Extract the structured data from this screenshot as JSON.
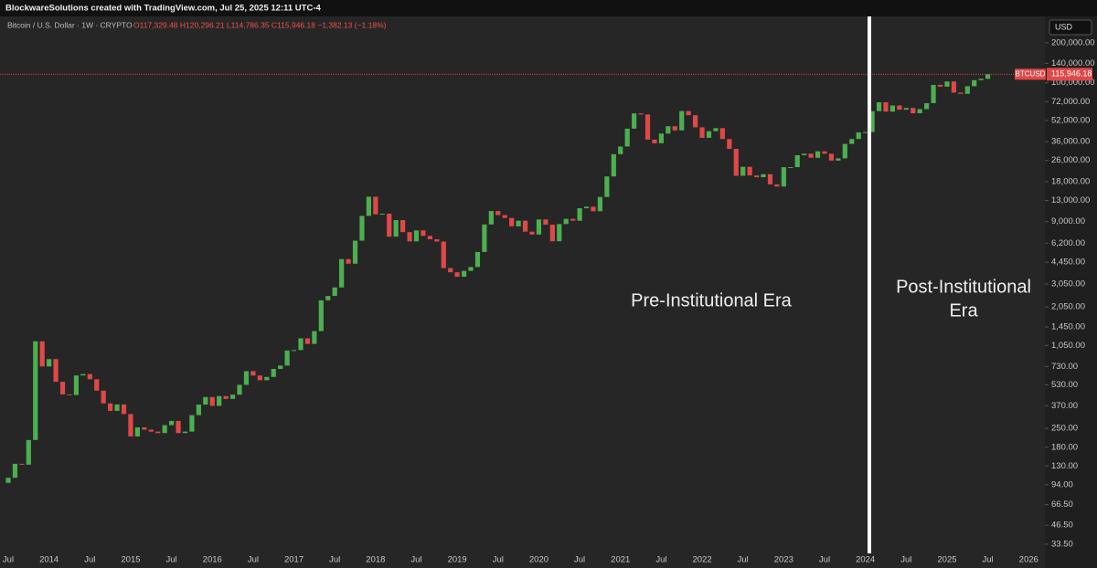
{
  "header": "BlockwareSolutions created with TradingView.com, Jul 25, 2025 12:11 UTC-4",
  "chart_data": {
    "type": "candlestick",
    "title": "Bitcoin / U.S. Dollar · 1W · CRYPTO",
    "ohlc_text": "O117,329.48 H120,296.21 L114,786.35 C115,946.18 −1,382.13 (−1.18%)",
    "symbol": "BTCUSD",
    "currency": "USD",
    "last_price": 115946.18,
    "last_price_label": "115,946.18",
    "annotations": [
      "Pre-Institutional Era",
      "Post-Institutional",
      "Era"
    ],
    "log_scale": true,
    "grid": false,
    "up_color": "#4caf50",
    "down_color": "#e04848",
    "x": [
      "2013-06",
      "2013-07",
      "2013-08",
      "2013-09",
      "2013-10",
      "2013-11",
      "2013-12",
      "2014-01",
      "2014-02",
      "2014-03",
      "2014-04",
      "2014-05",
      "2014-06",
      "2014-07",
      "2014-08",
      "2014-09",
      "2014-10",
      "2014-11",
      "2014-12",
      "2015-01",
      "2015-02",
      "2015-03",
      "2015-04",
      "2015-05",
      "2015-06",
      "2015-07",
      "2015-08",
      "2015-09",
      "2015-10",
      "2015-11",
      "2015-12",
      "2016-01",
      "2016-02",
      "2016-03",
      "2016-04",
      "2016-05",
      "2016-06",
      "2016-07",
      "2016-08",
      "2016-09",
      "2016-10",
      "2016-11",
      "2016-12",
      "2017-01",
      "2017-02",
      "2017-03",
      "2017-04",
      "2017-05",
      "2017-06",
      "2017-07",
      "2017-08",
      "2017-09",
      "2017-10",
      "2017-11",
      "2017-12",
      "2018-01",
      "2018-02",
      "2018-03",
      "2018-04",
      "2018-05",
      "2018-06",
      "2018-07",
      "2018-08",
      "2018-09",
      "2018-10",
      "2018-11",
      "2018-12",
      "2019-01",
      "2019-02",
      "2019-03",
      "2019-04",
      "2019-05",
      "2019-06",
      "2019-07",
      "2019-08",
      "2019-09",
      "2019-10",
      "2019-11",
      "2019-12",
      "2020-01",
      "2020-02",
      "2020-03",
      "2020-04",
      "2020-05",
      "2020-06",
      "2020-07",
      "2020-08",
      "2020-09",
      "2020-10",
      "2020-11",
      "2020-12",
      "2021-01",
      "2021-02",
      "2021-03",
      "2021-04",
      "2021-05",
      "2021-06",
      "2021-07",
      "2021-08",
      "2021-09",
      "2021-10",
      "2021-11",
      "2021-12",
      "2022-01",
      "2022-02",
      "2022-03",
      "2022-04",
      "2022-05",
      "2022-06",
      "2022-07",
      "2022-08",
      "2022-09",
      "2022-10",
      "2022-11",
      "2022-12",
      "2023-01",
      "2023-02",
      "2023-03",
      "2023-04",
      "2023-05",
      "2023-06",
      "2023-07",
      "2023-08",
      "2023-09",
      "2023-10",
      "2023-11",
      "2023-12",
      "2024-01",
      "2024-02",
      "2024-03",
      "2024-04",
      "2024-05",
      "2024-06",
      "2024-07",
      "2024-08",
      "2024-09",
      "2024-10",
      "2024-11",
      "2024-12",
      "2025-01",
      "2025-02",
      "2025-03",
      "2025-04",
      "2025-05",
      "2025-06",
      "2025-07"
    ],
    "values": [
      97,
      106,
      135,
      133,
      204,
      1130,
      730,
      830,
      560,
      450,
      445,
      625,
      640,
      585,
      480,
      385,
      338,
      378,
      320,
      217,
      254,
      244,
      236,
      230,
      264,
      284,
      230,
      236,
      314,
      377,
      430,
      369,
      437,
      416,
      448,
      531,
      673,
      624,
      575,
      609,
      700,
      742,
      963,
      970,
      1190,
      1080,
      1348,
      2300,
      2480,
      2875,
      4700,
      4340,
      6470,
      9950,
      13860,
      10220,
      10330,
      6930,
      9240,
      7500,
      6390,
      7730,
      7030,
      6630,
      6370,
      4020,
      3740,
      3460,
      3830,
      4100,
      5320,
      8570,
      10820,
      10080,
      9600,
      8290,
      9150,
      7570,
      7190,
      9350,
      8540,
      6410,
      8630,
      9450,
      9140,
      11350,
      11660,
      10780,
      13800,
      19700,
      28990,
      33110,
      45140,
      58800,
      57720,
      37330,
      35040,
      41460,
      47100,
      43790,
      61320,
      57000,
      46210,
      38480,
      43190,
      45540,
      37710,
      31790,
      19940,
      23300,
      20050,
      19430,
      20490,
      17170,
      16540,
      23130,
      23150,
      28480,
      29250,
      27220,
      30480,
      29230,
      25940,
      26970,
      34650,
      37720,
      42280,
      42580,
      61130,
      71330,
      60640,
      67490,
      62680,
      64620,
      58970,
      63330,
      70220,
      96450,
      93430,
      102400,
      84350,
      82550,
      94200,
      104600,
      107100,
      115946.18
    ],
    "ylim": [
      26.8,
      316000
    ],
    "yticks": [
      {
        "value": 200000,
        "label": "200,000.00"
      },
      {
        "value": 140000,
        "label": "140,000.00"
      },
      {
        "value": 100000,
        "label": "100,000.00"
      },
      {
        "value": 72000,
        "label": "72,000.00"
      },
      {
        "value": 52000,
        "label": "52,000.00"
      },
      {
        "value": 36000,
        "label": "36,000.00"
      },
      {
        "value": 26000,
        "label": "26,000.00"
      },
      {
        "value": 18000,
        "label": "18,000.00"
      },
      {
        "value": 13000,
        "label": "13,000.00"
      },
      {
        "value": 9000,
        "label": "9,000.00"
      },
      {
        "value": 6200,
        "label": "6,200.00"
      },
      {
        "value": 4450,
        "label": "4,450.00"
      },
      {
        "value": 3050,
        "label": "3,050.00"
      },
      {
        "value": 2050,
        "label": "2,050.00"
      },
      {
        "value": 1450,
        "label": "1,450.00"
      },
      {
        "value": 1050,
        "label": "1,050.00"
      },
      {
        "value": 730,
        "label": "730.00"
      },
      {
        "value": 530,
        "label": "530.00"
      },
      {
        "value": 370,
        "label": "370.00"
      },
      {
        "value": 250,
        "label": "250.00"
      },
      {
        "value": 180,
        "label": "180.00"
      },
      {
        "value": 130,
        "label": "130.00"
      },
      {
        "value": 94,
        "label": "94.00"
      },
      {
        "value": 66.5,
        "label": "66.50"
      },
      {
        "value": 46.5,
        "label": "46.50"
      },
      {
        "value": 33.5,
        "label": "33.50"
      }
    ],
    "xticks": [
      {
        "value": "2013-07",
        "label": "Jul"
      },
      {
        "value": "2014-01",
        "label": "2014"
      },
      {
        "value": "2014-07",
        "label": "Jul"
      },
      {
        "value": "2015-01",
        "label": "2015"
      },
      {
        "value": "2015-07",
        "label": "Jul"
      },
      {
        "value": "2016-01",
        "label": "2016"
      },
      {
        "value": "2016-07",
        "label": "Jul"
      },
      {
        "value": "2017-01",
        "label": "2017"
      },
      {
        "value": "2017-07",
        "label": "Jul"
      },
      {
        "value": "2018-01",
        "label": "2018"
      },
      {
        "value": "2018-07",
        "label": "Jul"
      },
      {
        "value": "2019-01",
        "label": "2019"
      },
      {
        "value": "2019-07",
        "label": "Jul"
      },
      {
        "value": "2020-01",
        "label": "2020"
      },
      {
        "value": "2020-07",
        "label": "Jul"
      },
      {
        "value": "2021-01",
        "label": "2021"
      },
      {
        "value": "2021-07",
        "label": "Jul"
      },
      {
        "value": "2022-01",
        "label": "2022"
      },
      {
        "value": "2022-07",
        "label": "Jul"
      },
      {
        "value": "2023-01",
        "label": "2023"
      },
      {
        "value": "2023-07",
        "label": "Jul"
      },
      {
        "value": "2024-01",
        "label": "2024"
      },
      {
        "value": "2024-07",
        "label": "Jul"
      },
      {
        "value": "2025-01",
        "label": "2025"
      },
      {
        "value": "2025-07",
        "label": "Jul"
      },
      {
        "value": "2026-01",
        "label": "2026"
      }
    ]
  }
}
